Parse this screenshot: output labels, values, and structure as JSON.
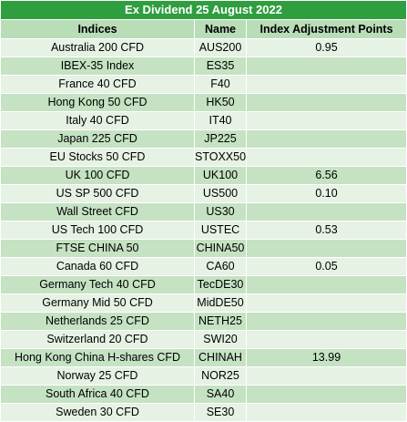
{
  "table": {
    "title": "Ex Dividend 25 August 2022",
    "headers": [
      "Indices",
      "Name",
      "Index Adjustment Points"
    ],
    "rows": [
      [
        "Australia 200 CFD",
        "AUS200",
        "0.95"
      ],
      [
        "IBEX-35 Index",
        "ES35",
        ""
      ],
      [
        "France 40 CFD",
        "F40",
        ""
      ],
      [
        "Hong Kong 50 CFD",
        "HK50",
        ""
      ],
      [
        "Italy 40 CFD",
        "IT40",
        ""
      ],
      [
        "Japan 225 CFD",
        "JP225",
        ""
      ],
      [
        "EU Stocks 50 CFD",
        "STOXX50",
        ""
      ],
      [
        "UK 100 CFD",
        "UK100",
        "6.56"
      ],
      [
        "US SP 500 CFD",
        "US500",
        "0.10"
      ],
      [
        "Wall Street CFD",
        "US30",
        ""
      ],
      [
        "US Tech 100 CFD",
        "USTEC",
        "0.53"
      ],
      [
        "FTSE CHINA 50",
        "CHINA50",
        ""
      ],
      [
        "Canada 60 CFD",
        "CA60",
        "0.05"
      ],
      [
        "Germany Tech 40 CFD",
        "TecDE30",
        ""
      ],
      [
        "Germany Mid 50 CFD",
        "MidDE50",
        ""
      ],
      [
        "Netherlands 25 CFD",
        "NETH25",
        ""
      ],
      [
        "Switzerland 20 CFD",
        "SWI20",
        ""
      ],
      [
        "Hong Kong China H-shares CFD",
        "CHINAH",
        "13.99"
      ],
      [
        "Norway 25 CFD",
        "NOR25",
        ""
      ],
      [
        "South Africa 40 CFD",
        "SA40",
        ""
      ],
      [
        "Sweden 30 CFD",
        "SE30",
        ""
      ]
    ]
  },
  "colors": {
    "title_bg": "#2e9e3f",
    "header_bg": "#b9ddb7",
    "row_light": "#e6f2e4",
    "row_dark": "#c5e2c2"
  }
}
